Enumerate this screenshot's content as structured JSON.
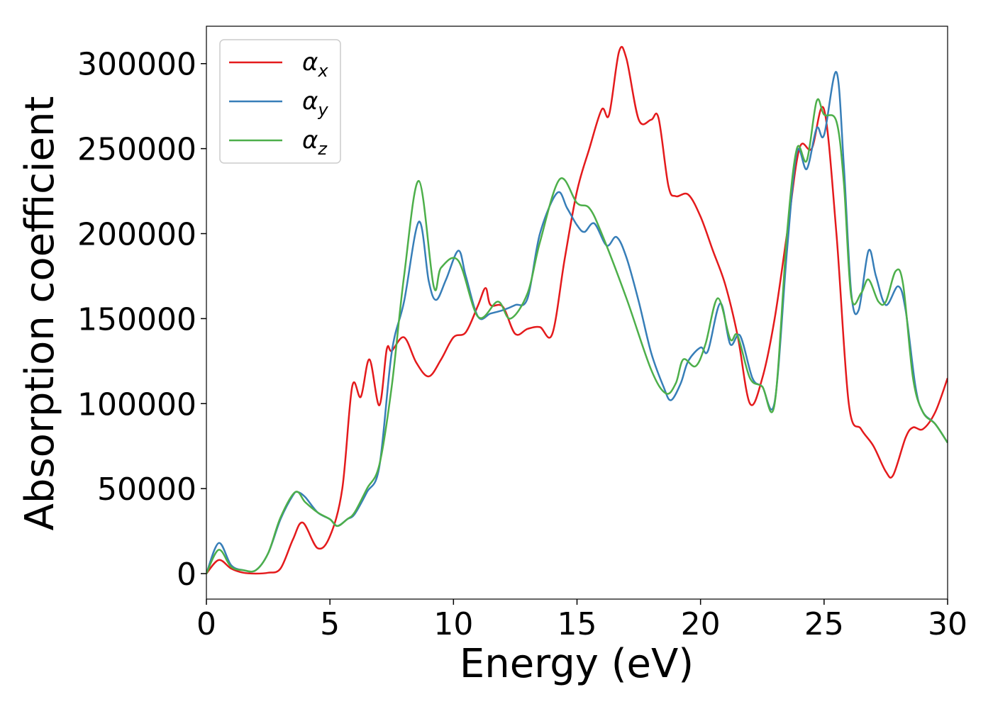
{
  "chart_data": {
    "type": "line",
    "xlabel": "Energy (eV)",
    "ylabel": "Absorption coefficient",
    "xlim": [
      0,
      30
    ],
    "ylim": [
      -15000,
      322000
    ],
    "xticks": [
      0,
      5,
      10,
      15,
      20,
      25,
      30
    ],
    "yticks": [
      0,
      50000,
      100000,
      150000,
      200000,
      250000,
      300000
    ],
    "grid": false,
    "legend": "upper left",
    "series": [
      {
        "name": "αx",
        "color": "#e41a1c",
        "x": [
          0,
          0.5,
          1,
          1.5,
          2,
          2.5,
          3,
          3.5,
          3.9,
          4.5,
          5,
          5.5,
          5.9,
          6.25,
          6.6,
          7,
          7.3,
          7.5,
          8,
          8.5,
          9,
          9.5,
          10,
          10.5,
          11,
          11.3,
          11.5,
          12,
          12.5,
          13,
          13.5,
          14,
          14.5,
          15,
          15.5,
          16,
          16.3,
          16.7,
          17,
          17.5,
          18,
          18.3,
          18.7,
          19,
          19.5,
          20,
          20.5,
          21,
          21.5,
          22,
          22.5,
          23,
          23.5,
          24,
          24.5,
          25,
          25.5,
          26,
          26.5,
          27,
          27.5,
          27.8,
          28.3,
          28.6,
          29,
          29.5,
          30
        ],
        "values": [
          0,
          8000,
          3000,
          500,
          0,
          500,
          3000,
          20000,
          30000,
          15000,
          22000,
          50000,
          110000,
          104000,
          126000,
          99000,
          132000,
          131000,
          139000,
          124000,
          116000,
          126000,
          139000,
          142000,
          158000,
          168000,
          158000,
          157000,
          141000,
          144000,
          145000,
          141000,
          185000,
          225000,
          250000,
          273000,
          270000,
          307000,
          303000,
          267000,
          267000,
          268000,
          228000,
          222000,
          223000,
          210000,
          190000,
          170000,
          140000,
          100000,
          115000,
          150000,
          200000,
          250000,
          250000,
          273000,
          200000,
          100000,
          85000,
          75000,
          60000,
          58000,
          80000,
          86000,
          85000,
          95000,
          115000
        ]
      },
      {
        "name": "αy",
        "color": "#377eb8",
        "x": [
          0,
          0.5,
          1,
          1.5,
          2,
          2.5,
          3,
          3.5,
          3.7,
          4,
          4.5,
          5,
          5.3,
          5.7,
          6,
          6.5,
          7,
          7.5,
          8,
          8.6,
          9,
          9.3,
          9.7,
          10.2,
          10.5,
          11,
          11.5,
          12,
          12.5,
          13,
          13.5,
          14.2,
          14.6,
          15,
          15.3,
          15.7,
          16.2,
          16.6,
          17,
          17.5,
          18,
          18.5,
          18.8,
          19.2,
          19.5,
          20,
          20.3,
          20.8,
          21.2,
          21.6,
          22.1,
          22.5,
          23,
          23.5,
          23.9,
          24.3,
          24.7,
          25,
          25.5,
          25.8,
          26.1,
          26.4,
          26.8,
          27.1,
          27.5,
          28,
          28.3,
          28.7,
          29,
          29.5,
          30
        ],
        "values": [
          0,
          18000,
          5000,
          2000,
          2000,
          12000,
          32000,
          46000,
          48000,
          45000,
          36000,
          32000,
          28000,
          32000,
          35000,
          48000,
          63000,
          130000,
          160000,
          207000,
          172000,
          161000,
          173000,
          190000,
          175000,
          151000,
          153000,
          155000,
          158000,
          162000,
          200000,
          224000,
          215000,
          205000,
          201000,
          206000,
          193000,
          198000,
          186000,
          160000,
          130000,
          110000,
          102000,
          112000,
          125000,
          133000,
          131000,
          159000,
          135000,
          140000,
          115000,
          110000,
          101000,
          190000,
          248000,
          238000,
          262000,
          258000,
          295000,
          240000,
          165000,
          155000,
          190000,
          175000,
          158000,
          169000,
          155000,
          110000,
          95000,
          88000,
          77000
        ]
      },
      {
        "name": "αz",
        "color": "#4daf4a",
        "x": [
          0,
          0.5,
          1,
          1.5,
          2,
          2.5,
          3,
          3.6,
          4,
          4.5,
          5,
          5.3,
          5.7,
          6,
          6.5,
          7,
          7.5,
          8,
          8.6,
          9.2,
          9.5,
          10.2,
          11,
          11.8,
          12.3,
          13,
          13.5,
          14.3,
          15,
          15.5,
          16,
          17,
          18,
          18.6,
          19,
          19.3,
          19.8,
          20.2,
          20.7,
          21.2,
          21.5,
          22,
          22.5,
          23,
          23.5,
          23.9,
          24.3,
          24.7,
          25,
          25.5,
          25.8,
          26.1,
          26.5,
          26.8,
          27.2,
          27.5,
          27.9,
          28.2,
          28.6,
          29,
          29.5,
          30
        ],
        "values": [
          0,
          14000,
          4000,
          2000,
          2000,
          12000,
          33000,
          48000,
          42000,
          36000,
          32000,
          28000,
          32000,
          36000,
          50000,
          64000,
          110000,
          175000,
          231000,
          169000,
          180000,
          184000,
          151000,
          160000,
          150000,
          165000,
          195000,
          232000,
          218000,
          215000,
          200000,
          162000,
          120000,
          106000,
          112000,
          126000,
          122000,
          135000,
          162000,
          138000,
          140000,
          115000,
          110000,
          100000,
          200000,
          250000,
          243000,
          278000,
          270000,
          266000,
          230000,
          163000,
          165000,
          173000,
          160000,
          160000,
          178000,
          170000,
          115000,
          95000,
          88000,
          77000
        ]
      }
    ]
  }
}
